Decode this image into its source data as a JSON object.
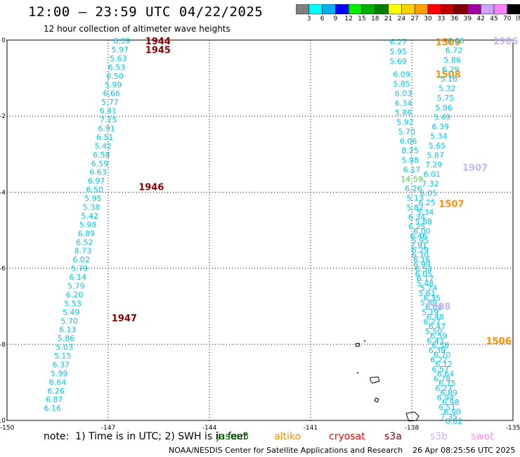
{
  "header": {
    "title": "12:00 — 23:59 UTC 04/22/2025",
    "subtitle": "12 hour collection of altimeter wave heights"
  },
  "colorbar": {
    "labels": [
      "3",
      "6",
      "9",
      "12",
      "15",
      "18",
      "21",
      "24",
      "27",
      "30",
      "33",
      "36",
      "39",
      "42",
      "45",
      "70",
      "(ft)"
    ],
    "colors": [
      "#808080",
      "#00ffff",
      "#00b0f0",
      "#0000ff",
      "#00ee00",
      "#00b000",
      "#008000",
      "#ffff00",
      "#ffd000",
      "#ffa000",
      "#ff0000",
      "#c00000",
      "#800000",
      "#a000a0",
      "#d0a0ff",
      "#ff80ff",
      "#000000"
    ]
  },
  "legend_satellites": [
    {
      "name": "jason3",
      "color": "#008000"
    },
    {
      "name": "altiko",
      "color": "#ff8c00"
    },
    {
      "name": "cryosat",
      "color": "#ff0000"
    },
    {
      "name": "s3a",
      "color": "#8b0000"
    },
    {
      "name": "s3b",
      "color": "#c8b4f0"
    },
    {
      "name": "swot",
      "color": "#ff88ff"
    }
  ],
  "note": "note:  1) Time is in UTC; 2) SWH is in feet",
  "footer": "NOAA/NESDIS Center for Satellite Applications and Research    26 Apr 08:25:56 UTC 2025",
  "chart_data": {
    "type": "scatter",
    "title": "12:00 — 23:59 UTC 04/22/2025",
    "subtitle": "12 hour collection of altimeter wave heights",
    "xlabel": "",
    "ylabel": "",
    "xlim": [
      -150,
      -135
    ],
    "ylim": [
      -10,
      0
    ],
    "x_ticks": [
      "-150",
      "-147",
      "-144",
      "-141",
      "-138",
      "-135"
    ],
    "y_ticks": [
      "0",
      "-2",
      "-4",
      "-6",
      "-8",
      "-10"
    ],
    "grid": true,
    "series": [
      {
        "name": "s3a",
        "color": "#00c8e6",
        "time_labels": [
          {
            "text": "1944",
            "lon": -145.9,
            "lat": -0.02,
            "color": "#8b0000"
          },
          {
            "text": "1945",
            "lon": -145.9,
            "lat": -0.25,
            "color": "#8b0000"
          },
          {
            "text": "1946",
            "lon": -146.1,
            "lat": -3.85,
            "color": "#8b0000"
          },
          {
            "text": "1947",
            "lon": -146.9,
            "lat": -7.3,
            "color": "#8b0000"
          }
        ],
        "points": [
          {
            "lon": -146.6,
            "lat": -0.02,
            "v": "6.39"
          },
          {
            "lon": -146.65,
            "lat": -0.25,
            "v": "5.97"
          },
          {
            "lon": -146.7,
            "lat": -0.48,
            "v": "5.63"
          },
          {
            "lon": -146.75,
            "lat": -0.71,
            "v": "6.53"
          },
          {
            "lon": -146.8,
            "lat": -0.94,
            "v": "6.50"
          },
          {
            "lon": -146.85,
            "lat": -1.17,
            "v": "5.99"
          },
          {
            "lon": -146.9,
            "lat": -1.4,
            "v": "6.66"
          },
          {
            "lon": -146.95,
            "lat": -1.63,
            "v": "5.77"
          },
          {
            "lon": -147.0,
            "lat": -1.86,
            "v": "6.41"
          },
          {
            "lon": -147.0,
            "lat": -2.09,
            "v": "7.25"
          },
          {
            "lon": -147.05,
            "lat": -2.32,
            "v": "6.91"
          },
          {
            "lon": -147.1,
            "lat": -2.55,
            "v": "6.51"
          },
          {
            "lon": -147.15,
            "lat": -2.78,
            "v": "5.42"
          },
          {
            "lon": -147.2,
            "lat": -3.01,
            "v": "6.58"
          },
          {
            "lon": -147.25,
            "lat": -3.24,
            "v": "6.59"
          },
          {
            "lon": -147.3,
            "lat": -3.47,
            "v": "6.63"
          },
          {
            "lon": -147.35,
            "lat": -3.7,
            "v": "6.97"
          },
          {
            "lon": -147.4,
            "lat": -3.93,
            "v": "6.50"
          },
          {
            "lon": -147.45,
            "lat": -4.16,
            "v": "5.95"
          },
          {
            "lon": -147.5,
            "lat": -4.39,
            "v": "5.38"
          },
          {
            "lon": -147.55,
            "lat": -4.62,
            "v": "5.42"
          },
          {
            "lon": -147.6,
            "lat": -4.85,
            "v": "5.98"
          },
          {
            "lon": -147.65,
            "lat": -5.08,
            "v": "6.89"
          },
          {
            "lon": -147.7,
            "lat": -5.31,
            "v": "6.52"
          },
          {
            "lon": -147.75,
            "lat": -5.54,
            "v": "8.73"
          },
          {
            "lon": -147.8,
            "lat": -5.77,
            "v": "6.02"
          },
          {
            "lon": -147.85,
            "lat": -6.0,
            "v": "5.79"
          },
          {
            "lon": -147.9,
            "lat": -6.23,
            "v": "6.14"
          },
          {
            "lon": -147.95,
            "lat": -6.46,
            "v": "5.79"
          },
          {
            "lon": -148.0,
            "lat": -6.69,
            "v": "6.20"
          },
          {
            "lon": -148.05,
            "lat": -6.92,
            "v": "5.53"
          },
          {
            "lon": -148.1,
            "lat": -7.15,
            "v": "5.49"
          },
          {
            "lon": -148.15,
            "lat": -7.38,
            "v": "5.70"
          },
          {
            "lon": -148.2,
            "lat": -7.61,
            "v": "6.13"
          },
          {
            "lon": -148.25,
            "lat": -7.84,
            "v": "5.86"
          },
          {
            "lon": -148.3,
            "lat": -8.07,
            "v": "5.03"
          },
          {
            "lon": -148.35,
            "lat": -8.3,
            "v": "5.15"
          },
          {
            "lon": -148.4,
            "lat": -8.53,
            "v": "6.37"
          },
          {
            "lon": -148.45,
            "lat": -8.76,
            "v": "5.99"
          },
          {
            "lon": -148.5,
            "lat": -8.99,
            "v": "6.64"
          },
          {
            "lon": -148.55,
            "lat": -9.22,
            "v": "6.26"
          },
          {
            "lon": -148.6,
            "lat": -9.45,
            "v": "6.87"
          },
          {
            "lon": -148.65,
            "lat": -9.68,
            "v": "6.16"
          }
        ]
      },
      {
        "name": "altiko",
        "color": "#00c8e6",
        "time_labels": [
          {
            "text": "1509",
            "lon": -137.3,
            "lat": -0.05,
            "color": "#ff8c00"
          },
          {
            "text": "1508",
            "lon": -137.3,
            "lat": -0.9,
            "color": "#ff8c00"
          },
          {
            "text": "1507",
            "lon": -137.2,
            "lat": -4.3,
            "color": "#ff8c00"
          },
          {
            "text": "1506",
            "lon": -135.8,
            "lat": -7.9,
            "color": "#ff8c00"
          }
        ],
        "points": [
          {
            "lon": -138.4,
            "lat": -0.05,
            "v": "6.27"
          },
          {
            "lon": -138.4,
            "lat": -0.3,
            "v": "5.95"
          },
          {
            "lon": -138.4,
            "lat": -0.55,
            "v": "5.69"
          },
          {
            "lon": -138.3,
            "lat": -0.9,
            "v": "6.09"
          },
          {
            "lon": -138.3,
            "lat": -1.15,
            "v": "5.85"
          },
          {
            "lon": -138.25,
            "lat": -1.4,
            "v": "6.03"
          },
          {
            "lon": -138.25,
            "lat": -1.65,
            "v": "6.34"
          },
          {
            "lon": -138.25,
            "lat": -1.9,
            "v": "5.86"
          },
          {
            "lon": -138.2,
            "lat": -2.15,
            "v": "5.92"
          },
          {
            "lon": -138.15,
            "lat": -2.4,
            "v": "5.70"
          },
          {
            "lon": -138.1,
            "lat": -2.65,
            "v": "6.06"
          },
          {
            "lon": -138.05,
            "lat": -2.9,
            "v": "8.25"
          },
          {
            "lon": -138.05,
            "lat": -3.15,
            "v": "5.98"
          },
          {
            "lon": -138.0,
            "lat": -3.4,
            "v": "6.17"
          },
          {
            "lon": -138.0,
            "lat": -3.65,
            "v": "14.59"
          },
          {
            "lon": -137.95,
            "lat": -3.9,
            "v": "6.26"
          },
          {
            "lon": -137.9,
            "lat": -4.15,
            "v": "5.13"
          },
          {
            "lon": -137.9,
            "lat": -4.4,
            "v": "5.82"
          },
          {
            "lon": -137.85,
            "lat": -4.65,
            "v": "6.34"
          },
          {
            "lon": -137.85,
            "lat": -4.9,
            "v": "6.25"
          },
          {
            "lon": -137.8,
            "lat": -5.15,
            "v": "6.46"
          },
          {
            "lon": -137.8,
            "lat": -5.4,
            "v": "7.91"
          },
          {
            "lon": -137.75,
            "lat": -5.65,
            "v": "6.70"
          },
          {
            "lon": -137.7,
            "lat": -5.9,
            "v": "6.99"
          },
          {
            "lon": -137.65,
            "lat": -6.15,
            "v": "6.05"
          },
          {
            "lon": -137.6,
            "lat": -6.4,
            "v": "5.48"
          },
          {
            "lon": -137.55,
            "lat": -6.65,
            "v": "5.61"
          },
          {
            "lon": -137.5,
            "lat": -6.9,
            "v": "5.89"
          },
          {
            "lon": -137.45,
            "lat": -7.15,
            "v": "5.19"
          },
          {
            "lon": -137.4,
            "lat": -7.4,
            "v": "6.27"
          },
          {
            "lon": -137.35,
            "lat": -7.65,
            "v": "5.50"
          },
          {
            "lon": -137.3,
            "lat": -7.9,
            "v": "6.43"
          },
          {
            "lon": -137.25,
            "lat": -8.15,
            "v": "6.39"
          },
          {
            "lon": -137.2,
            "lat": -8.4,
            "v": "6.22"
          },
          {
            "lon": -137.15,
            "lat": -8.65,
            "v": "6.57"
          },
          {
            "lon": -137.1,
            "lat": -8.9,
            "v": "6.78"
          },
          {
            "lon": -137.05,
            "lat": -9.15,
            "v": "6.27"
          },
          {
            "lon": -137.0,
            "lat": -9.4,
            "v": "6.94"
          },
          {
            "lon": -136.95,
            "lat": -9.65,
            "v": "6.51"
          },
          {
            "lon": -136.9,
            "lat": -9.9,
            "v": "7.35"
          }
        ]
      },
      {
        "name": "s3b",
        "color": "#00c8e6",
        "time_labels": [
          {
            "text": "1906",
            "lon": -135.6,
            "lat": -0.02,
            "color": "#c8b4f0"
          },
          {
            "text": "1907",
            "lon": -136.5,
            "lat": -3.35,
            "color": "#c8b4f0"
          },
          {
            "text": "1908",
            "lon": -137.6,
            "lat": -7.0,
            "color": "#c8b4f0"
          }
        ],
        "points": [
          {
            "lon": -136.7,
            "lat": -0.02,
            "v": "6.66"
          },
          {
            "lon": -136.75,
            "lat": -0.27,
            "v": "6.72"
          },
          {
            "lon": -136.8,
            "lat": -0.52,
            "v": "5.86"
          },
          {
            "lon": -136.85,
            "lat": -0.77,
            "v": "6.29"
          },
          {
            "lon": -136.9,
            "lat": -1.02,
            "v": "5.16"
          },
          {
            "lon": -136.95,
            "lat": -1.27,
            "v": "5.32"
          },
          {
            "lon": -137.0,
            "lat": -1.52,
            "v": "5.75"
          },
          {
            "lon": -137.05,
            "lat": -1.77,
            "v": "5.96"
          },
          {
            "lon": -137.1,
            "lat": -2.02,
            "v": "5.49"
          },
          {
            "lon": -137.15,
            "lat": -2.27,
            "v": "6.39"
          },
          {
            "lon": -137.2,
            "lat": -2.52,
            "v": "5.34"
          },
          {
            "lon": -137.25,
            "lat": -2.77,
            "v": "5.65"
          },
          {
            "lon": -137.3,
            "lat": -3.02,
            "v": "5.87"
          },
          {
            "lon": -137.35,
            "lat": -3.27,
            "v": "7.29"
          },
          {
            "lon": -137.4,
            "lat": -3.52,
            "v": "6.01"
          },
          {
            "lon": -137.45,
            "lat": -3.77,
            "v": "7.32"
          },
          {
            "lon": -137.5,
            "lat": -4.02,
            "v": "6.05"
          },
          {
            "lon": -137.55,
            "lat": -4.27,
            "v": "6.25"
          },
          {
            "lon": -137.6,
            "lat": -4.52,
            "v": "5.34"
          },
          {
            "lon": -137.65,
            "lat": -4.77,
            "v": "5.88"
          },
          {
            "lon": -137.7,
            "lat": -5.02,
            "v": "6.00"
          },
          {
            "lon": -137.75,
            "lat": -5.27,
            "v": "5.95"
          },
          {
            "lon": -137.75,
            "lat": -5.52,
            "v": "6.29"
          },
          {
            "lon": -137.7,
            "lat": -5.77,
            "v": "6.16"
          },
          {
            "lon": -137.65,
            "lat": -6.02,
            "v": "6.54"
          },
          {
            "lon": -137.6,
            "lat": -6.27,
            "v": "6.17"
          },
          {
            "lon": -137.5,
            "lat": -6.52,
            "v": "5.74"
          },
          {
            "lon": -137.4,
            "lat": -6.77,
            "v": "6.35"
          },
          {
            "lon": -137.35,
            "lat": -7.02,
            "v": "6.08"
          },
          {
            "lon": -137.3,
            "lat": -7.27,
            "v": "6.48"
          },
          {
            "lon": -137.25,
            "lat": -7.52,
            "v": "6.47"
          },
          {
            "lon": -137.2,
            "lat": -7.77,
            "v": "6.59"
          },
          {
            "lon": -137.15,
            "lat": -8.02,
            "v": "6.38"
          },
          {
            "lon": -137.1,
            "lat": -8.27,
            "v": "6.70"
          },
          {
            "lon": -137.05,
            "lat": -8.52,
            "v": "6.12"
          },
          {
            "lon": -137.0,
            "lat": -8.77,
            "v": "6.64"
          },
          {
            "lon": -136.95,
            "lat": -9.02,
            "v": "6.75"
          },
          {
            "lon": -136.9,
            "lat": -9.27,
            "v": "6.89"
          },
          {
            "lon": -136.85,
            "lat": -9.52,
            "v": "6.98"
          },
          {
            "lon": -136.8,
            "lat": -9.77,
            "v": "6.90"
          },
          {
            "lon": -136.75,
            "lat": -10.02,
            "v": "6.82"
          }
        ]
      }
    ]
  }
}
